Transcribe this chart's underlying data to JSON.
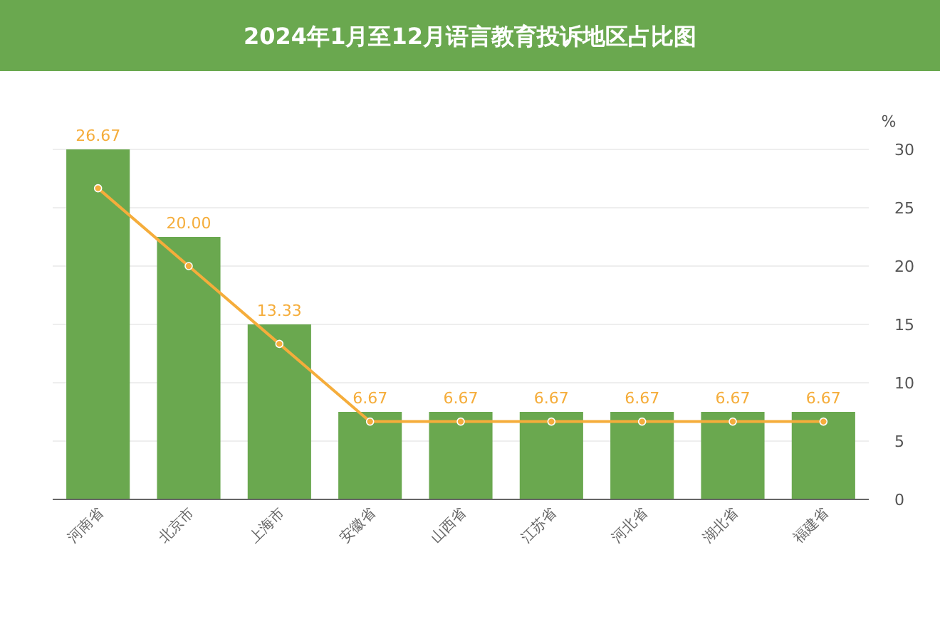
{
  "chart_data": {
    "type": "bar",
    "title": "2024年1月至12月语言教育投诉地区占比图",
    "ylabel": "%",
    "categories": [
      "河南省",
      "北京市",
      "上海市",
      "安徽省",
      "山西省",
      "江苏省",
      "河北省",
      "湖北省",
      "福建省"
    ],
    "series": [
      {
        "color": "#6aa84f",
        "values": [
          30,
          22.5,
          15,
          7.5,
          7.5,
          7.5,
          7.5,
          7.5,
          7.5
        ]
      },
      {
        "type": "line",
        "color": "#f5ad3b",
        "marker": "circle",
        "values": [
          26.67,
          20,
          13.33,
          6.67,
          6.67,
          6.67,
          6.67,
          6.67,
          6.67
        ],
        "value_labels": [
          "26.67",
          "20.00",
          "13.33",
          "6.67",
          "6.67",
          "6.67",
          "6.67",
          "6.67",
          "6.67"
        ]
      }
    ],
    "ylim": [
      0,
      30
    ],
    "yticks": [
      0,
      5,
      10,
      15,
      20,
      25,
      30
    ],
    "grid": "y"
  }
}
